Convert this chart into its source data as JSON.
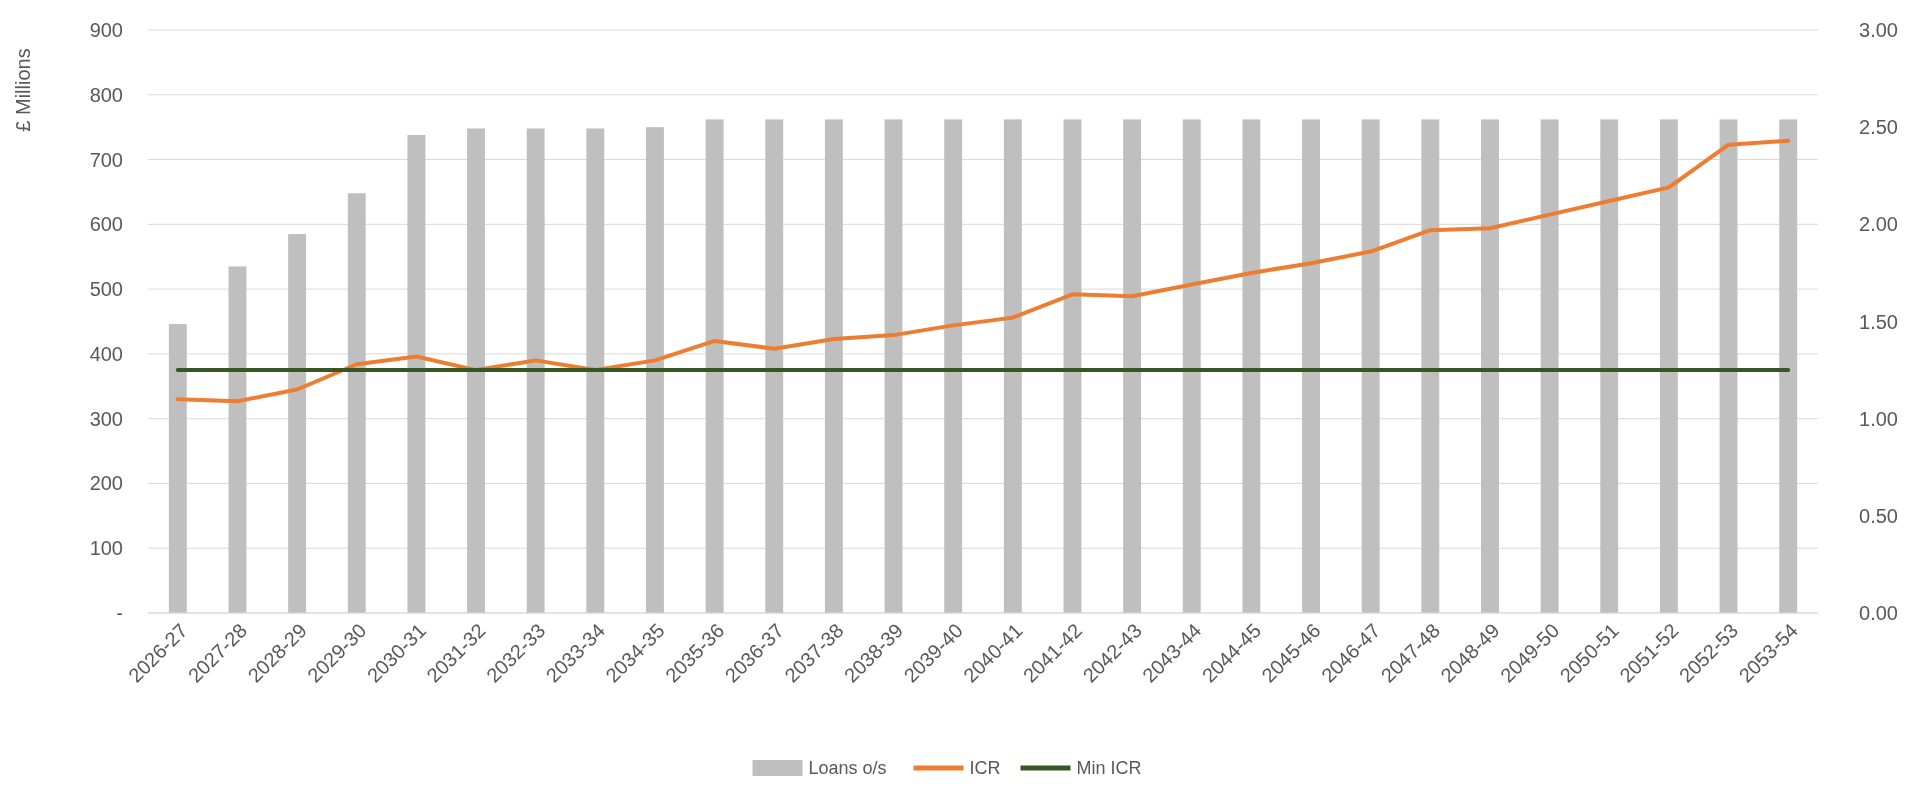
{
  "chart_data": {
    "type": "bar",
    "ylabel": "£ Millions",
    "categories": [
      "2026-27",
      "2027-28",
      "2028-29",
      "2029-30",
      "2030-31",
      "2031-32",
      "2032-33",
      "2033-34",
      "2034-35",
      "2035-36",
      "2036-37",
      "2037-38",
      "2038-39",
      "2039-40",
      "2040-41",
      "2041-42",
      "2042-43",
      "2043-44",
      "2044-45",
      "2045-46",
      "2046-47",
      "2047-48",
      "2048-49",
      "2049-50",
      "2050-51",
      "2051-52",
      "2052-53",
      "2053-54"
    ],
    "series": [
      {
        "name": "Loans o/s",
        "color": "#bfbfbf",
        "values": [
          446,
          535,
          585,
          648,
          738,
          748,
          748,
          748,
          750,
          762,
          762,
          762,
          762,
          762,
          762,
          762,
          762,
          762,
          762,
          762,
          762,
          762,
          762,
          762,
          762,
          762,
          762,
          762
        ]
      },
      {
        "name": "ICR",
        "type": "line",
        "axis": "y2",
        "color": "#ed7d31",
        "values": [
          1.1,
          1.09,
          1.15,
          1.28,
          1.32,
          1.25,
          1.3,
          1.25,
          1.3,
          1.4,
          1.36,
          1.41,
          1.43,
          1.48,
          1.52,
          1.64,
          1.63,
          1.69,
          1.75,
          1.8,
          1.86,
          1.97,
          1.98,
          2.05,
          2.12,
          2.19,
          2.41,
          2.43
        ]
      },
      {
        "name": "Min ICR",
        "type": "line",
        "axis": "y2",
        "color": "#375623",
        "values": [
          1.25,
          1.25,
          1.25,
          1.25,
          1.25,
          1.25,
          1.25,
          1.25,
          1.25,
          1.25,
          1.25,
          1.25,
          1.25,
          1.25,
          1.25,
          1.25,
          1.25,
          1.25,
          1.25,
          1.25,
          1.25,
          1.25,
          1.25,
          1.25,
          1.25,
          1.25,
          1.25,
          1.25
        ]
      }
    ],
    "ylim": [
      0,
      900
    ],
    "yticks": [
      {
        "value": 0,
        "label": "-"
      },
      100,
      200,
      300,
      400,
      500,
      600,
      700,
      800,
      900
    ],
    "y2lim": [
      0,
      3
    ],
    "y2ticks": [
      {
        "value": 0,
        "label": "0.00"
      },
      {
        "value": 0.5,
        "label": "0.50"
      },
      {
        "value": 1,
        "label": "1.00"
      },
      {
        "value": 1.5,
        "label": "1.50"
      },
      {
        "value": 2,
        "label": "2.00"
      },
      {
        "value": 2.5,
        "label": "2.50"
      },
      {
        "value": 3,
        "label": "3.00"
      }
    ],
    "grid": "y",
    "legend": "bottom",
    "line_style": "solid",
    "marker": "none"
  }
}
